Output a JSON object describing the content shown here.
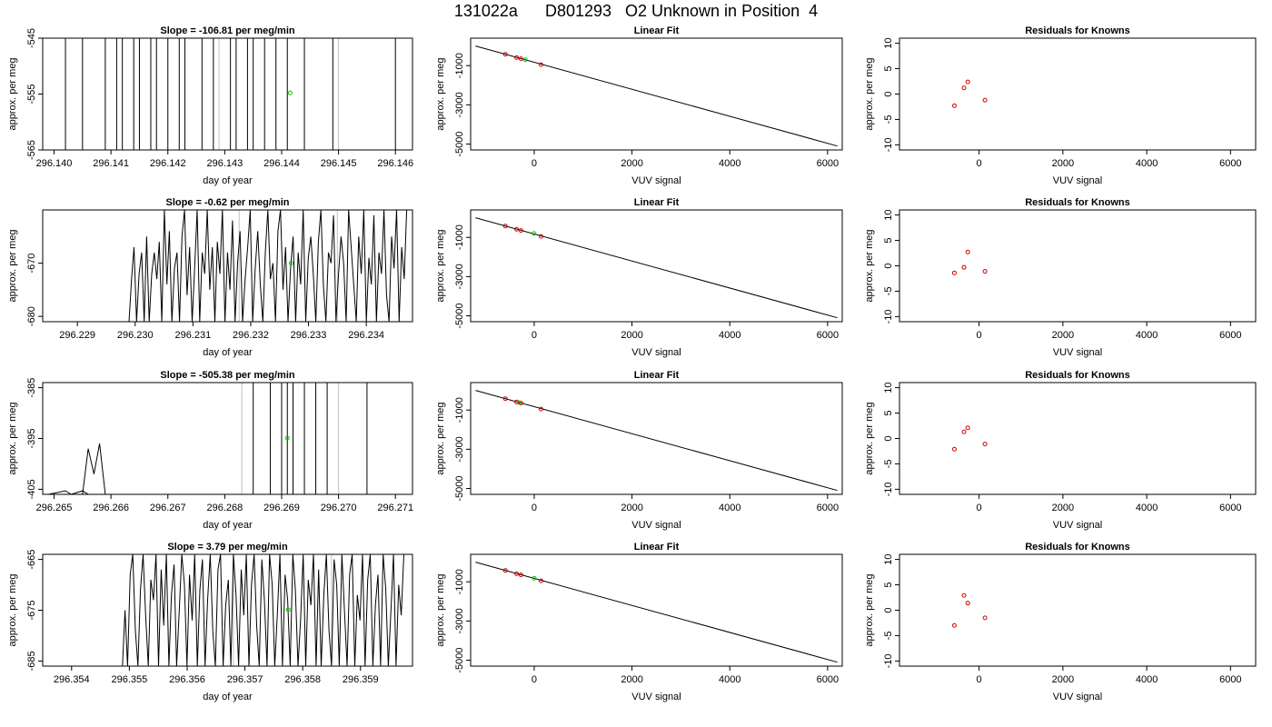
{
  "figure": {
    "title": "131022a      D801293   O2 Unknown in Position  4",
    "colors": {
      "line": "#000000",
      "unknown_point": "#00cc00",
      "known_point": "#cc0000",
      "grey_line": "#c0c0c0"
    }
  },
  "chart_data": [
    {
      "type": "line",
      "row": 1,
      "title": "Slope =  -106.81  per meg/min",
      "xlabel": "day of year",
      "ylabel": "approx. per meg",
      "xlim": [
        296.1398,
        296.1463
      ],
      "ylim": [
        -565,
        -545
      ],
      "xticks": [
        "296.140",
        "296.141",
        "296.142",
        "296.143",
        "296.144",
        "296.145",
        "296.146"
      ],
      "yticks": [
        "-565",
        "-555",
        "-545"
      ],
      "vertical_lines_x": [
        296.1402,
        296.1405,
        296.1409,
        296.1411,
        296.1412,
        296.1414,
        296.1415,
        296.1417,
        296.1418,
        296.142,
        296.1422,
        296.1423,
        296.1426,
        296.1428,
        296.1431,
        296.1432,
        296.1434,
        296.1435,
        296.1437,
        296.1439,
        296.1441,
        296.1444,
        296.1449,
        296.146
      ],
      "grey_lines_x": [
        296.1429,
        296.145
      ],
      "unknown_point": {
        "x": 296.14415,
        "y": -554.8
      }
    },
    {
      "type": "scatter",
      "row": 1,
      "title": "Linear Fit",
      "xlabel": "VUV signal",
      "ylabel": "approx. per meg",
      "xlim": [
        -1300,
        6300
      ],
      "ylim": [
        -5300,
        400
      ],
      "xticks": [
        "0",
        "2000",
        "4000",
        "6000"
      ],
      "yticks": [
        "-5000",
        "-3000",
        "-1000"
      ],
      "fit_line": {
        "x": [
          -1200,
          6200
        ],
        "y": [
          0,
          -5100
        ]
      },
      "known_points": [
        {
          "x": -590,
          "y": -420
        },
        {
          "x": -360,
          "y": -590
        },
        {
          "x": -270,
          "y": -650
        },
        {
          "x": 140,
          "y": -950
        }
      ],
      "unknown_point": {
        "x": -180,
        "y": -700
      }
    },
    {
      "type": "scatter",
      "row": 1,
      "title": "Residuals for Knowns",
      "xlabel": "VUV signal",
      "ylabel": "approx. per meg",
      "xlim": [
        -1900,
        6600
      ],
      "ylim": [
        -11,
        11
      ],
      "xticks": [
        "0",
        "2000",
        "4000",
        "6000"
      ],
      "yticks": [
        "-10",
        "-5",
        "0",
        "5",
        "10"
      ],
      "known_points": [
        {
          "x": -590,
          "y": -2.3
        },
        {
          "x": -360,
          "y": 1.2
        },
        {
          "x": -270,
          "y": 2.4
        },
        {
          "x": 140,
          "y": -1.2
        }
      ]
    },
    {
      "type": "line",
      "row": 2,
      "title": "Slope =  -0.62  per meg/min",
      "xlabel": "day of year",
      "ylabel": "approx. per meg",
      "xlim": [
        296.2284,
        296.2348
      ],
      "ylim": [
        -681,
        -660
      ],
      "xticks": [
        "296.229",
        "296.230",
        "296.231",
        "296.232",
        "296.233",
        "296.234"
      ],
      "yticks": [
        "-680",
        "-670"
      ],
      "series": {
        "x_start": 296.22985,
        "x_end": 296.2347,
        "y": [
          -681,
          -681,
          -673,
          -667,
          -681,
          -672,
          -668,
          -681,
          -665,
          -681,
          -672,
          -668,
          -673,
          -666,
          -681,
          -660,
          -674,
          -664,
          -681,
          -671,
          -668,
          -681,
          -665,
          -660,
          -676,
          -667,
          -681,
          -671,
          -660,
          -681,
          -668,
          -672,
          -660,
          -675,
          -667,
          -681,
          -666,
          -672,
          -660,
          -681,
          -668,
          -675,
          -662,
          -681,
          -670,
          -664,
          -681,
          -673,
          -667,
          -660,
          -681,
          -671,
          -664,
          -674,
          -681,
          -668,
          -660,
          -673,
          -670,
          -681,
          -664,
          -660,
          -675,
          -667,
          -681,
          -671,
          -665,
          -681,
          -668,
          -674,
          -660,
          -681,
          -669,
          -665,
          -672,
          -681,
          -666,
          -660,
          -674,
          -681,
          -668,
          -670,
          -661,
          -681,
          -672,
          -665,
          -670,
          -681,
          -660,
          -667,
          -674,
          -681,
          -665,
          -672,
          -660,
          -681,
          -669,
          -674,
          -661,
          -681,
          -668,
          -672,
          -660,
          -676,
          -681,
          -665,
          -671,
          -660,
          -681,
          -667,
          -673,
          -660
        ]
      },
      "grey_lines_x": [
        296.2318,
        296.2335
      ],
      "unknown_point": {
        "x": 296.2327,
        "y": -670
      }
    },
    {
      "type": "scatter",
      "row": 2,
      "title": "Linear Fit",
      "xlabel": "VUV signal",
      "ylabel": "approx. per meg",
      "xlim": [
        -1300,
        6300
      ],
      "ylim": [
        -5300,
        400
      ],
      "xticks": [
        "0",
        "2000",
        "4000",
        "6000"
      ],
      "yticks": [
        "-5000",
        "-3000",
        "-1000"
      ],
      "fit_line": {
        "x": [
          -1200,
          6200
        ],
        "y": [
          0,
          -5100
        ]
      },
      "known_points": [
        {
          "x": -590,
          "y": -420
        },
        {
          "x": -360,
          "y": -590
        },
        {
          "x": -270,
          "y": -650
        },
        {
          "x": 140,
          "y": -950
        }
      ],
      "unknown_point": {
        "x": -5,
        "y": -800
      }
    },
    {
      "type": "scatter",
      "row": 2,
      "title": "Residuals for Knowns",
      "xlabel": "VUV signal",
      "ylabel": "approx. per meg",
      "xlim": [
        -1900,
        6600
      ],
      "ylim": [
        -11,
        11
      ],
      "xticks": [
        "0",
        "2000",
        "4000",
        "6000"
      ],
      "yticks": [
        "-10",
        "-5",
        "0",
        "5",
        "10"
      ],
      "known_points": [
        {
          "x": -590,
          "y": -1.4
        },
        {
          "x": -360,
          "y": -0.3
        },
        {
          "x": -270,
          "y": 2.7
        },
        {
          "x": 140,
          "y": -1.1
        }
      ]
    },
    {
      "type": "line",
      "row": 3,
      "title": "Slope =  -505.38  per meg/min",
      "xlabel": "day of year",
      "ylabel": "approx. per meg",
      "xlim": [
        296.2648,
        296.2713
      ],
      "ylim": [
        -406,
        -384
      ],
      "xticks": [
        "296.265",
        "296.266",
        "296.267",
        "296.268",
        "296.269",
        "296.270",
        "296.271"
      ],
      "yticks": [
        "-405",
        "-395",
        "-385"
      ],
      "baseline_segments": [
        {
          "x": [
            296.2649,
            296.2652,
            296.2653,
            296.2655,
            296.2656
          ],
          "y": [
            -406,
            -405.3,
            -406,
            -405.3,
            -406
          ]
        },
        {
          "x": [
            296.2655,
            296.2656,
            296.2657,
            296.2658,
            296.2659
          ],
          "y": [
            -406,
            -397,
            -402,
            -396,
            -406
          ]
        }
      ],
      "vertical_lines_x": [
        296.2685,
        296.2688,
        296.269,
        296.2691,
        296.2692,
        296.2694,
        296.2696,
        296.2698,
        296.2705
      ],
      "grey_lines_x": [
        296.2683,
        296.27
      ],
      "unknown_point": {
        "x": 296.2691,
        "y": -394.9
      }
    },
    {
      "type": "scatter",
      "row": 3,
      "title": "Linear Fit",
      "xlabel": "VUV signal",
      "ylabel": "approx. per meg",
      "xlim": [
        -1300,
        6300
      ],
      "ylim": [
        -5300,
        400
      ],
      "xticks": [
        "0",
        "2000",
        "4000",
        "6000"
      ],
      "yticks": [
        "-5000",
        "-3000",
        "-1000"
      ],
      "fit_line": {
        "x": [
          -1200,
          6200
        ],
        "y": [
          0,
          -5100
        ]
      },
      "known_points": [
        {
          "x": -590,
          "y": -420
        },
        {
          "x": -360,
          "y": -590
        },
        {
          "x": -270,
          "y": -650
        },
        {
          "x": 140,
          "y": -950
        }
      ],
      "unknown_point": {
        "x": -310,
        "y": -620
      }
    },
    {
      "type": "scatter",
      "row": 3,
      "title": "Residuals for Knowns",
      "xlabel": "VUV signal",
      "ylabel": "approx. per meg",
      "xlim": [
        -1900,
        6600
      ],
      "ylim": [
        -11,
        11
      ],
      "xticks": [
        "0",
        "2000",
        "4000",
        "6000"
      ],
      "yticks": [
        "-10",
        "-5",
        "0",
        "5",
        "10"
      ],
      "known_points": [
        {
          "x": -590,
          "y": -2.1
        },
        {
          "x": -360,
          "y": 1.3
        },
        {
          "x": -270,
          "y": 2.1
        },
        {
          "x": 140,
          "y": -1.1
        }
      ]
    },
    {
      "type": "line",
      "row": 4,
      "title": "Slope =  3.79  per meg/min",
      "xlabel": "day of year",
      "ylabel": "approx. per meg",
      "xlim": [
        296.3535,
        296.3599
      ],
      "ylim": [
        -686,
        -664
      ],
      "xticks": [
        "296.354",
        "296.355",
        "296.356",
        "296.357",
        "296.358",
        "296.359"
      ],
      "yticks": [
        "-685",
        "-675",
        "-665"
      ],
      "series": {
        "x_start": 296.35488,
        "x_end": 296.35975,
        "y": [
          -686,
          -675,
          -686,
          -668,
          -664,
          -679,
          -686,
          -671,
          -664,
          -676,
          -686,
          -669,
          -673,
          -664,
          -686,
          -667,
          -678,
          -664,
          -686,
          -672,
          -666,
          -686,
          -675,
          -664,
          -670,
          -686,
          -668,
          -677,
          -664,
          -686,
          -671,
          -665,
          -686,
          -673,
          -664,
          -679,
          -686,
          -667,
          -664,
          -686,
          -674,
          -669,
          -686,
          -664,
          -672,
          -686,
          -667,
          -676,
          -664,
          -686,
          -670,
          -664,
          -678,
          -686,
          -665,
          -673,
          -686,
          -664,
          -670,
          -686,
          -676,
          -664,
          -686,
          -668,
          -673,
          -686,
          -664,
          -671,
          -686,
          -677,
          -664,
          -686,
          -669,
          -674,
          -664,
          -686,
          -667,
          -686,
          -672,
          -664,
          -679,
          -686,
          -665,
          -670,
          -686,
          -664,
          -675,
          -686,
          -668,
          -664,
          -686,
          -672,
          -677,
          -664,
          -686,
          -669,
          -664,
          -686,
          -674,
          -668,
          -686,
          -664,
          -671,
          -686,
          -675,
          -664,
          -686,
          -670,
          -676,
          -664
        ]
      },
      "grey_lines_x": [
        296.3568,
        296.3585
      ],
      "unknown_point": {
        "x": 296.35775,
        "y": -674.9
      }
    },
    {
      "type": "scatter",
      "row": 4,
      "title": "Linear Fit",
      "xlabel": "VUV signal",
      "ylabel": "approx. per meg",
      "xlim": [
        -1300,
        6300
      ],
      "ylim": [
        -5300,
        400
      ],
      "xticks": [
        "0",
        "2000",
        "4000",
        "6000"
      ],
      "yticks": [
        "-5000",
        "-3000",
        "-1000"
      ],
      "fit_line": {
        "x": [
          -1200,
          6200
        ],
        "y": [
          0,
          -5100
        ]
      },
      "known_points": [
        {
          "x": -590,
          "y": -420
        },
        {
          "x": -360,
          "y": -590
        },
        {
          "x": -270,
          "y": -650
        },
        {
          "x": 140,
          "y": -950
        }
      ],
      "unknown_point": {
        "x": 0,
        "y": -820
      }
    },
    {
      "type": "scatter",
      "row": 4,
      "title": "Residuals for Knowns",
      "xlabel": "VUV signal",
      "ylabel": "approx. per meg",
      "xlim": [
        -1900,
        6600
      ],
      "ylim": [
        -11,
        11
      ],
      "xticks": [
        "0",
        "2000",
        "4000",
        "6000"
      ],
      "yticks": [
        "-10",
        "-5",
        "0",
        "5",
        "10"
      ],
      "known_points": [
        {
          "x": -590,
          "y": -3.0
        },
        {
          "x": -360,
          "y": 2.9
        },
        {
          "x": -270,
          "y": 1.4
        },
        {
          "x": 140,
          "y": -1.5
        }
      ]
    }
  ]
}
